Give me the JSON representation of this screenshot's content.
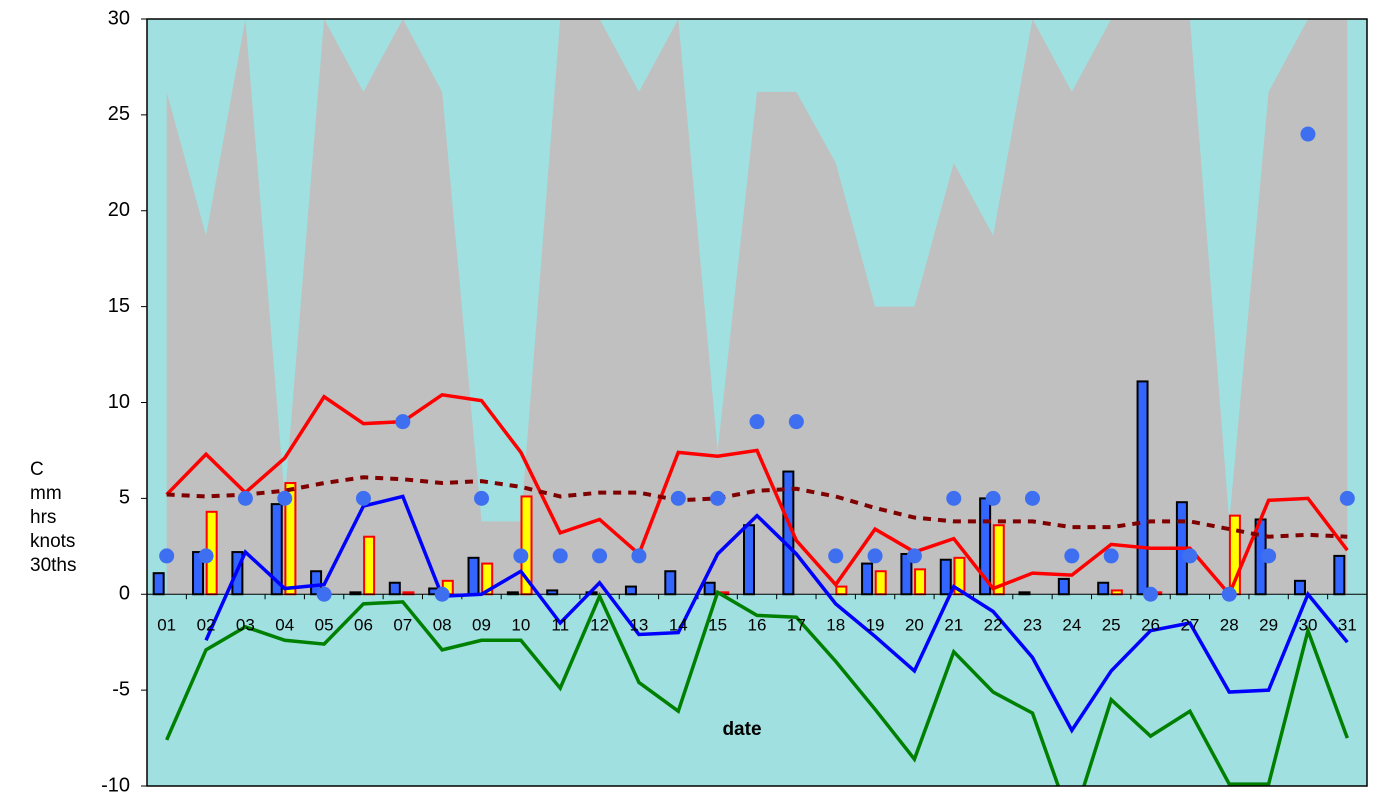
{
  "chart_data": {
    "type": "combo",
    "y_label_lines": [
      "C",
      "mm",
      "hrs",
      "knots",
      "30ths"
    ],
    "x_label": "date",
    "categories": [
      "01",
      "02",
      "03",
      "04",
      "05",
      "06",
      "07",
      "08",
      "09",
      "10",
      "11",
      "12",
      "13",
      "14",
      "15",
      "16",
      "17",
      "18",
      "19",
      "20",
      "21",
      "22",
      "23",
      "24",
      "25",
      "26",
      "27",
      "28",
      "29",
      "30",
      "31"
    ],
    "ylim": [
      -10,
      30
    ],
    "yticks": [
      -10,
      -5,
      0,
      5,
      10,
      15,
      20,
      25,
      30
    ],
    "background": "#a0e0e0",
    "series": [
      {
        "type": "area",
        "color": "#c0c0c0",
        "values": [
          26.2,
          18.7,
          30,
          5,
          30,
          26.2,
          30,
          26.2,
          3.8,
          3.8,
          30,
          30,
          26.2,
          30,
          7.5,
          26.2,
          26.2,
          22.5,
          15,
          15,
          22.5,
          18.7,
          30,
          26.2,
          30,
          30,
          30,
          3.8,
          26.2,
          30,
          30
        ]
      },
      {
        "type": "bar",
        "color": "#3366ff",
        "edge": "#000000",
        "offset": -1,
        "values": [
          1.1,
          2.2,
          2.2,
          4.7,
          1.2,
          0.1,
          0.6,
          0.3,
          1.9,
          0.1,
          0.2,
          0.1,
          0.4,
          1.2,
          0.6,
          3.6,
          6.4,
          0,
          1.6,
          2.1,
          1.8,
          5,
          0.1,
          0.8,
          0.6,
          11.1,
          4.8,
          0,
          3.9,
          0.7,
          2
        ]
      },
      {
        "type": "bar",
        "color": "#ffff00",
        "edge": "#ff0000",
        "offset": 1,
        "values": [
          0,
          4.3,
          0,
          5.8,
          0,
          3,
          0.1,
          0.7,
          1.6,
          5.1,
          0,
          0,
          0,
          0,
          0.1,
          0,
          0,
          0.4,
          1.2,
          1.3,
          1.9,
          3.6,
          0,
          0,
          0.2,
          0.1,
          0,
          4.1,
          0,
          0,
          0
        ]
      },
      {
        "type": "line",
        "color": "#ff0000",
        "dash": false,
        "values": [
          5.2,
          7.3,
          5.3,
          7.1,
          10.3,
          8.9,
          9,
          10.4,
          10.1,
          7.4,
          3.2,
          3.9,
          2.1,
          7.4,
          7.2,
          7.5,
          2.8,
          0.5,
          3.4,
          2.2,
          2.9,
          0.3,
          1.1,
          1,
          2.6,
          2.4,
          2.4,
          0,
          4.9,
          5,
          2.3
        ]
      },
      {
        "type": "line",
        "color": "#800000",
        "dash": true,
        "values": [
          5.2,
          5.1,
          5.2,
          5.4,
          5.8,
          6.1,
          6,
          5.8,
          5.9,
          5.6,
          5.1,
          5.3,
          5.3,
          4.9,
          5,
          5.4,
          5.5,
          5.1,
          4.5,
          4,
          3.8,
          3.8,
          3.8,
          3.5,
          3.5,
          3.8,
          3.8,
          3.4,
          3,
          3.1,
          3
        ]
      },
      {
        "type": "line",
        "color": "#0000ff",
        "dash": false,
        "values": [
          null,
          -2.4,
          2.2,
          0.3,
          0.5,
          4.6,
          5.1,
          -0.1,
          0,
          1.2,
          -1.5,
          0.6,
          -2.1,
          -2,
          2.1,
          4.1,
          2.1,
          -0.5,
          -2.2,
          -4,
          0.4,
          -0.9,
          -3.3,
          -7.1,
          -4,
          -1.9,
          -1.5,
          -5.1,
          -5,
          0,
          -2.5
        ]
      },
      {
        "type": "line",
        "color": "#008000",
        "dash": false,
        "values": [
          -7.6,
          -2.9,
          -1.7,
          -2.4,
          -2.6,
          -0.5,
          -0.4,
          -2.9,
          -2.4,
          -2.4,
          -4.9,
          -0.1,
          -4.6,
          -6.1,
          0.1,
          -1.1,
          -1.2,
          -3.5,
          -6,
          -8.6,
          -3,
          -5.1,
          -6.2,
          -12,
          -5.5,
          -7.4,
          -6.1,
          -9.9,
          -9.9,
          -1.9,
          -7.5
        ]
      },
      {
        "type": "scatter",
        "color": "#3d6ff0",
        "values": [
          2,
          2,
          5,
          5,
          0,
          5,
          9,
          0,
          5,
          2,
          2,
          2,
          2,
          5,
          5,
          9,
          9,
          2,
          2,
          2,
          5,
          5,
          5,
          2,
          2,
          0,
          2,
          0,
          2,
          24,
          5
        ]
      }
    ]
  }
}
